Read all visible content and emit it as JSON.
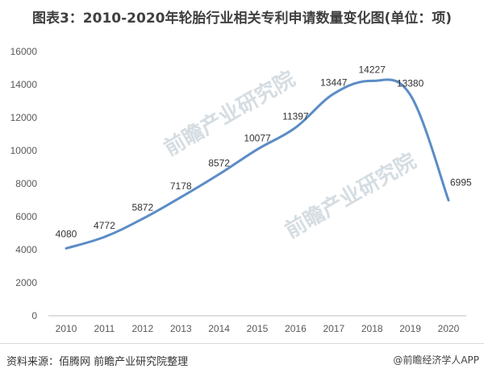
{
  "title": "图表3：2010-2020年轮胎行业相关专利申请数量变化图(单位：项)",
  "source": "资料来源：佰腾网 前瞻产业研究院整理",
  "credit": "@前瞻经济学人APP",
  "watermark": "前瞻产业研究院",
  "colors": {
    "line": "#5b8cc6",
    "axis": "#bfbfbf",
    "text": "#595959"
  },
  "chart_data": {
    "type": "line",
    "x": [
      "2010",
      "2011",
      "2012",
      "2013",
      "2014",
      "2015",
      "2016",
      "2017",
      "2018",
      "2019",
      "2020"
    ],
    "series": [
      {
        "values": [
          4080,
          4772,
          5872,
          7178,
          8572,
          10077,
          11397,
          13447,
          14227,
          13380,
          6995
        ]
      }
    ],
    "yticks": [
      0,
      2000,
      4000,
      6000,
      8000,
      10000,
      12000,
      14000,
      16000
    ],
    "ylim": [
      0,
      16000
    ],
    "grid": false,
    "smooth": true
  }
}
